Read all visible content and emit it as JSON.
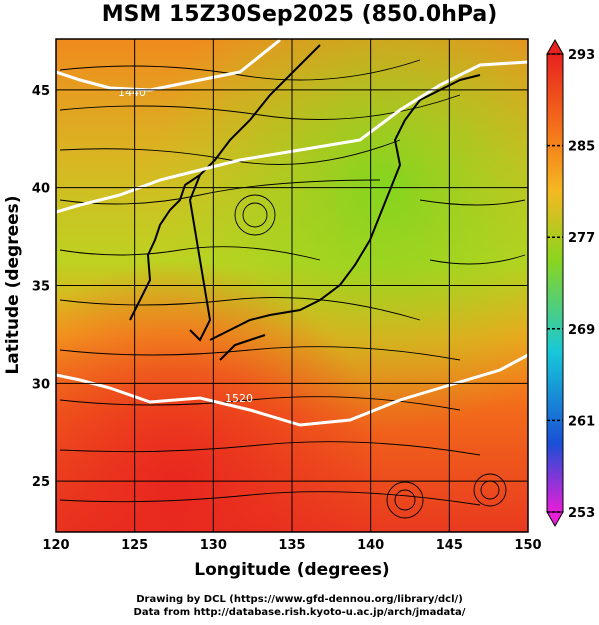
{
  "title": "MSM 15Z30Sep2025 (850.0hPa)",
  "axes": {
    "xlabel": "Longitude (degrees)",
    "ylabel": "Latitude  (degrees)",
    "xticks": [
      "120",
      "125",
      "130",
      "135",
      "140",
      "145",
      "150"
    ],
    "yticks": [
      "25",
      "30",
      "35",
      "40",
      "45"
    ],
    "xlim": [
      120,
      150
    ],
    "ylim": [
      22.4,
      47.6
    ]
  },
  "colorbar": {
    "labels": [
      "293",
      "285",
      "277",
      "269",
      "261",
      "253"
    ],
    "range": [
      253,
      293
    ],
    "colors": {
      "hot": "#e8221f",
      "warm": "#f57a1a",
      "mid": "#f4b822",
      "green": "#8ad51e",
      "cyan": "#17c8d8",
      "blue": "#1a4fd6",
      "magenta": "#e81fd8"
    }
  },
  "contours": {
    "labels": [
      "1440",
      "1520"
    ],
    "color": "#ffffff"
  },
  "credits": [
    "Drawing by DCL (https://www.gfd-dennou.org/library/dcl/)",
    "Data from http://database.rish.kyoto-u.ac.jp/arch/jmadata/"
  ]
}
